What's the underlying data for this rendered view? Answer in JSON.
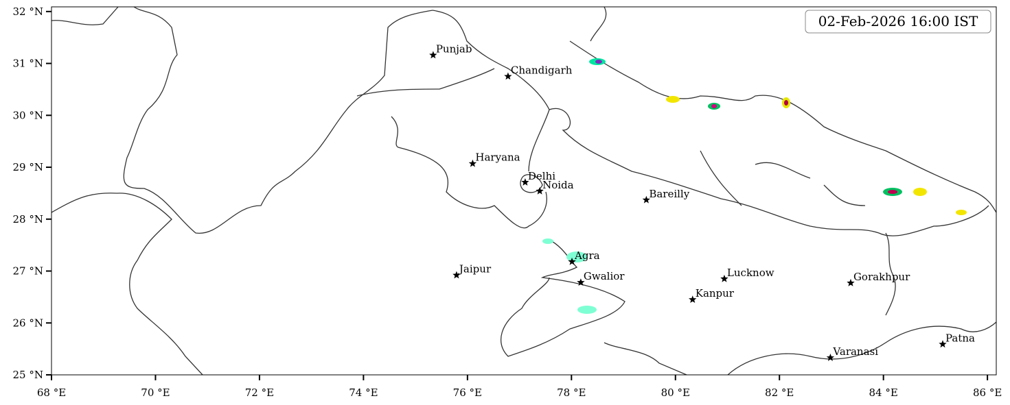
{
  "map": {
    "timestamp": "02-Feb-2026 16:00 IST",
    "xlim": [
      68,
      86.17
    ],
    "ylim": [
      25,
      32.09
    ],
    "xticks": [
      {
        "value": 68,
        "label": "68 °E"
      },
      {
        "value": 70,
        "label": "70 °E"
      },
      {
        "value": 72,
        "label": "72 °E"
      },
      {
        "value": 74,
        "label": "74 °E"
      },
      {
        "value": 76,
        "label": "76 °E"
      },
      {
        "value": 78,
        "label": "78 °E"
      },
      {
        "value": 80,
        "label": "80 °E"
      },
      {
        "value": 82,
        "label": "82 °E"
      },
      {
        "value": 84,
        "label": "84 °E"
      },
      {
        "value": 86,
        "label": "86 °E"
      }
    ],
    "yticks": [
      {
        "value": 25,
        "label": "25 °N"
      },
      {
        "value": 26,
        "label": "26 °N"
      },
      {
        "value": 27,
        "label": "27 °N"
      },
      {
        "value": 28,
        "label": "28 °N"
      },
      {
        "value": 29,
        "label": "29 °N"
      },
      {
        "value": 30,
        "label": "30 °N"
      },
      {
        "value": 31,
        "label": "31 °N"
      },
      {
        "value": 32,
        "label": "32 °N"
      }
    ],
    "cities": [
      {
        "name": "Punjab",
        "lon": 75.34,
        "lat": 31.16
      },
      {
        "name": "Chandigarh",
        "lon": 76.78,
        "lat": 30.75
      },
      {
        "name": "Haryana",
        "lon": 76.1,
        "lat": 29.07
      },
      {
        "name": "Delhi",
        "lon": 77.11,
        "lat": 28.71
      },
      {
        "name": "Noida",
        "lon": 77.39,
        "lat": 28.54
      },
      {
        "name": "Bareilly",
        "lon": 79.44,
        "lat": 28.37
      },
      {
        "name": "Agra",
        "lon": 78.01,
        "lat": 27.18
      },
      {
        "name": "Jaipur",
        "lon": 75.79,
        "lat": 26.92
      },
      {
        "name": "Gwalior",
        "lon": 78.18,
        "lat": 26.78
      },
      {
        "name": "Lucknow",
        "lon": 80.94,
        "lat": 26.85
      },
      {
        "name": "Kanpur",
        "lon": 80.33,
        "lat": 26.45
      },
      {
        "name": "Gorakhpur",
        "lon": 83.37,
        "lat": 26.77
      },
      {
        "name": "Varanasi",
        "lon": 82.98,
        "lat": 25.33
      },
      {
        "name": "Patna",
        "lon": 85.14,
        "lat": 25.59
      }
    ]
  }
}
